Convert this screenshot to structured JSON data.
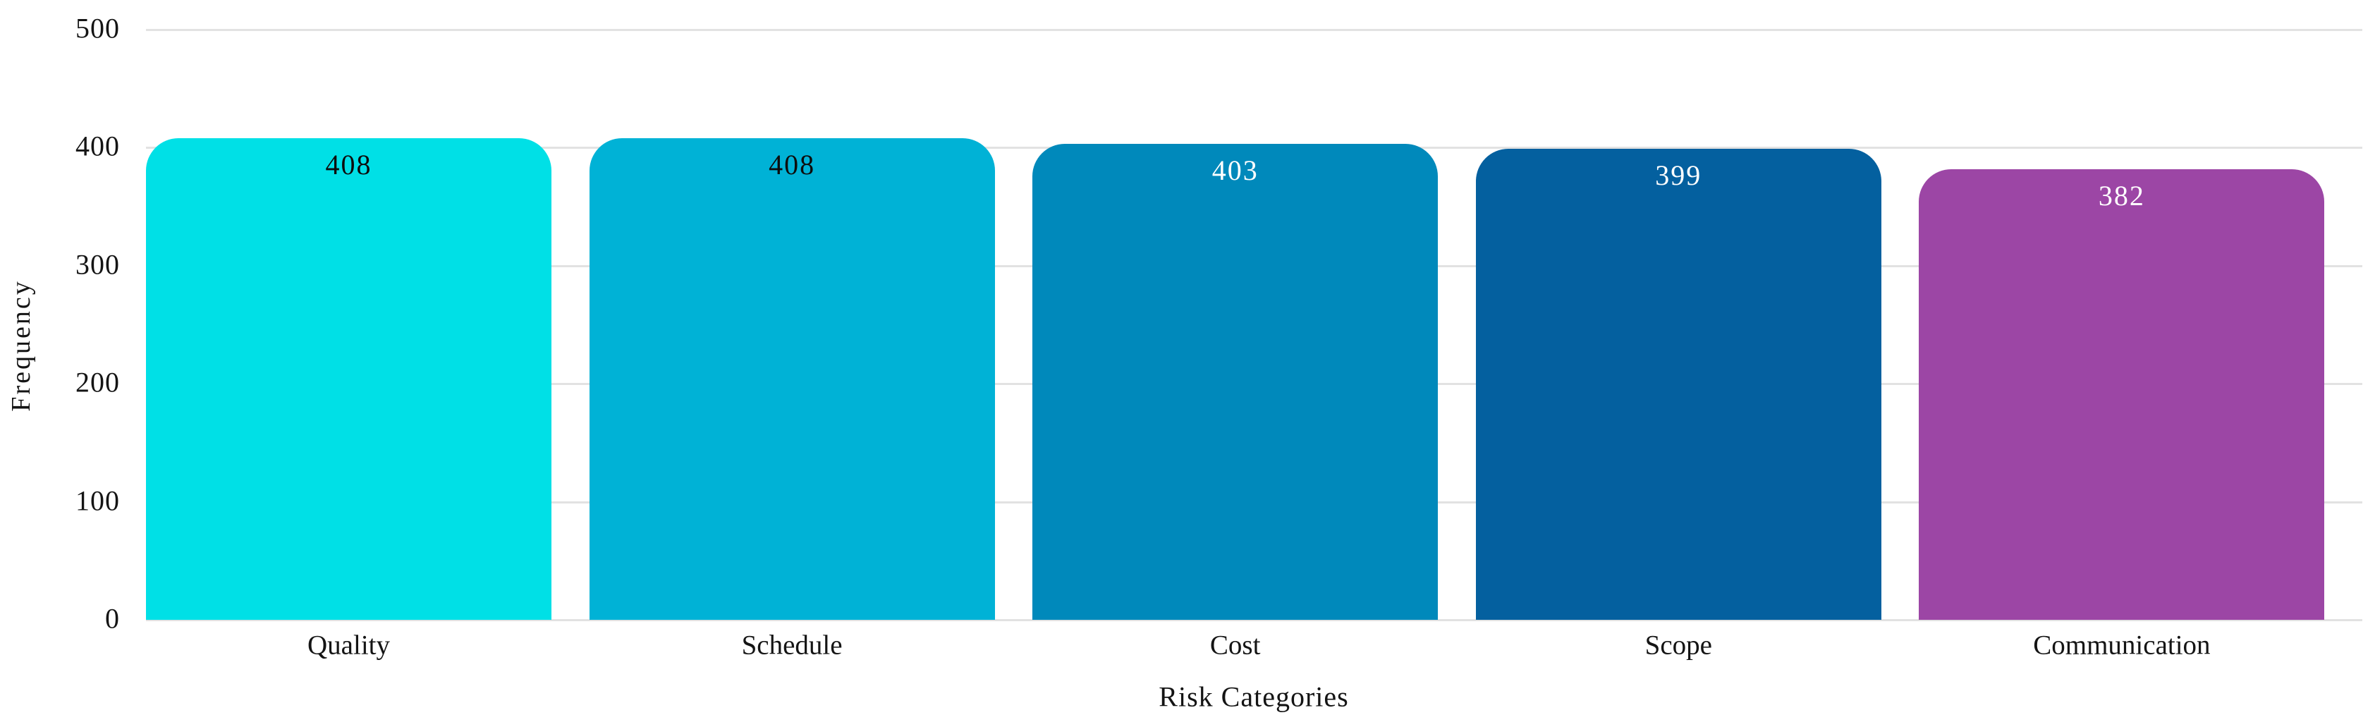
{
  "chart_data": {
    "type": "bar",
    "title": "",
    "xlabel": "Risk Categories",
    "ylabel": "Frequency",
    "categories": [
      "Quality",
      "Schedule",
      "Cost",
      "Scope",
      "Communication"
    ],
    "values": [
      408,
      408,
      403,
      399,
      382
    ],
    "value_labels": [
      "408",
      "408",
      "403",
      "399",
      "382"
    ],
    "bar_colors": [
      "#00E0E6",
      "#00B2D6",
      "#0089BB",
      "#04609F",
      "#9C46A5"
    ],
    "value_label_colors": [
      "#0d0d0d",
      "#0d0d0d",
      "#ffffff",
      "#ffffff",
      "#ffffff"
    ],
    "ylim": [
      0,
      500
    ],
    "yticks": [
      0,
      100,
      200,
      300,
      400,
      500
    ],
    "ytick_labels": [
      "0",
      "100",
      "200",
      "300",
      "400",
      "500"
    ],
    "grid": "horizontal",
    "gridline_color": "#e2e2e2",
    "text_color": "#141414",
    "background_color": "#ffffff",
    "legend": "none"
  }
}
